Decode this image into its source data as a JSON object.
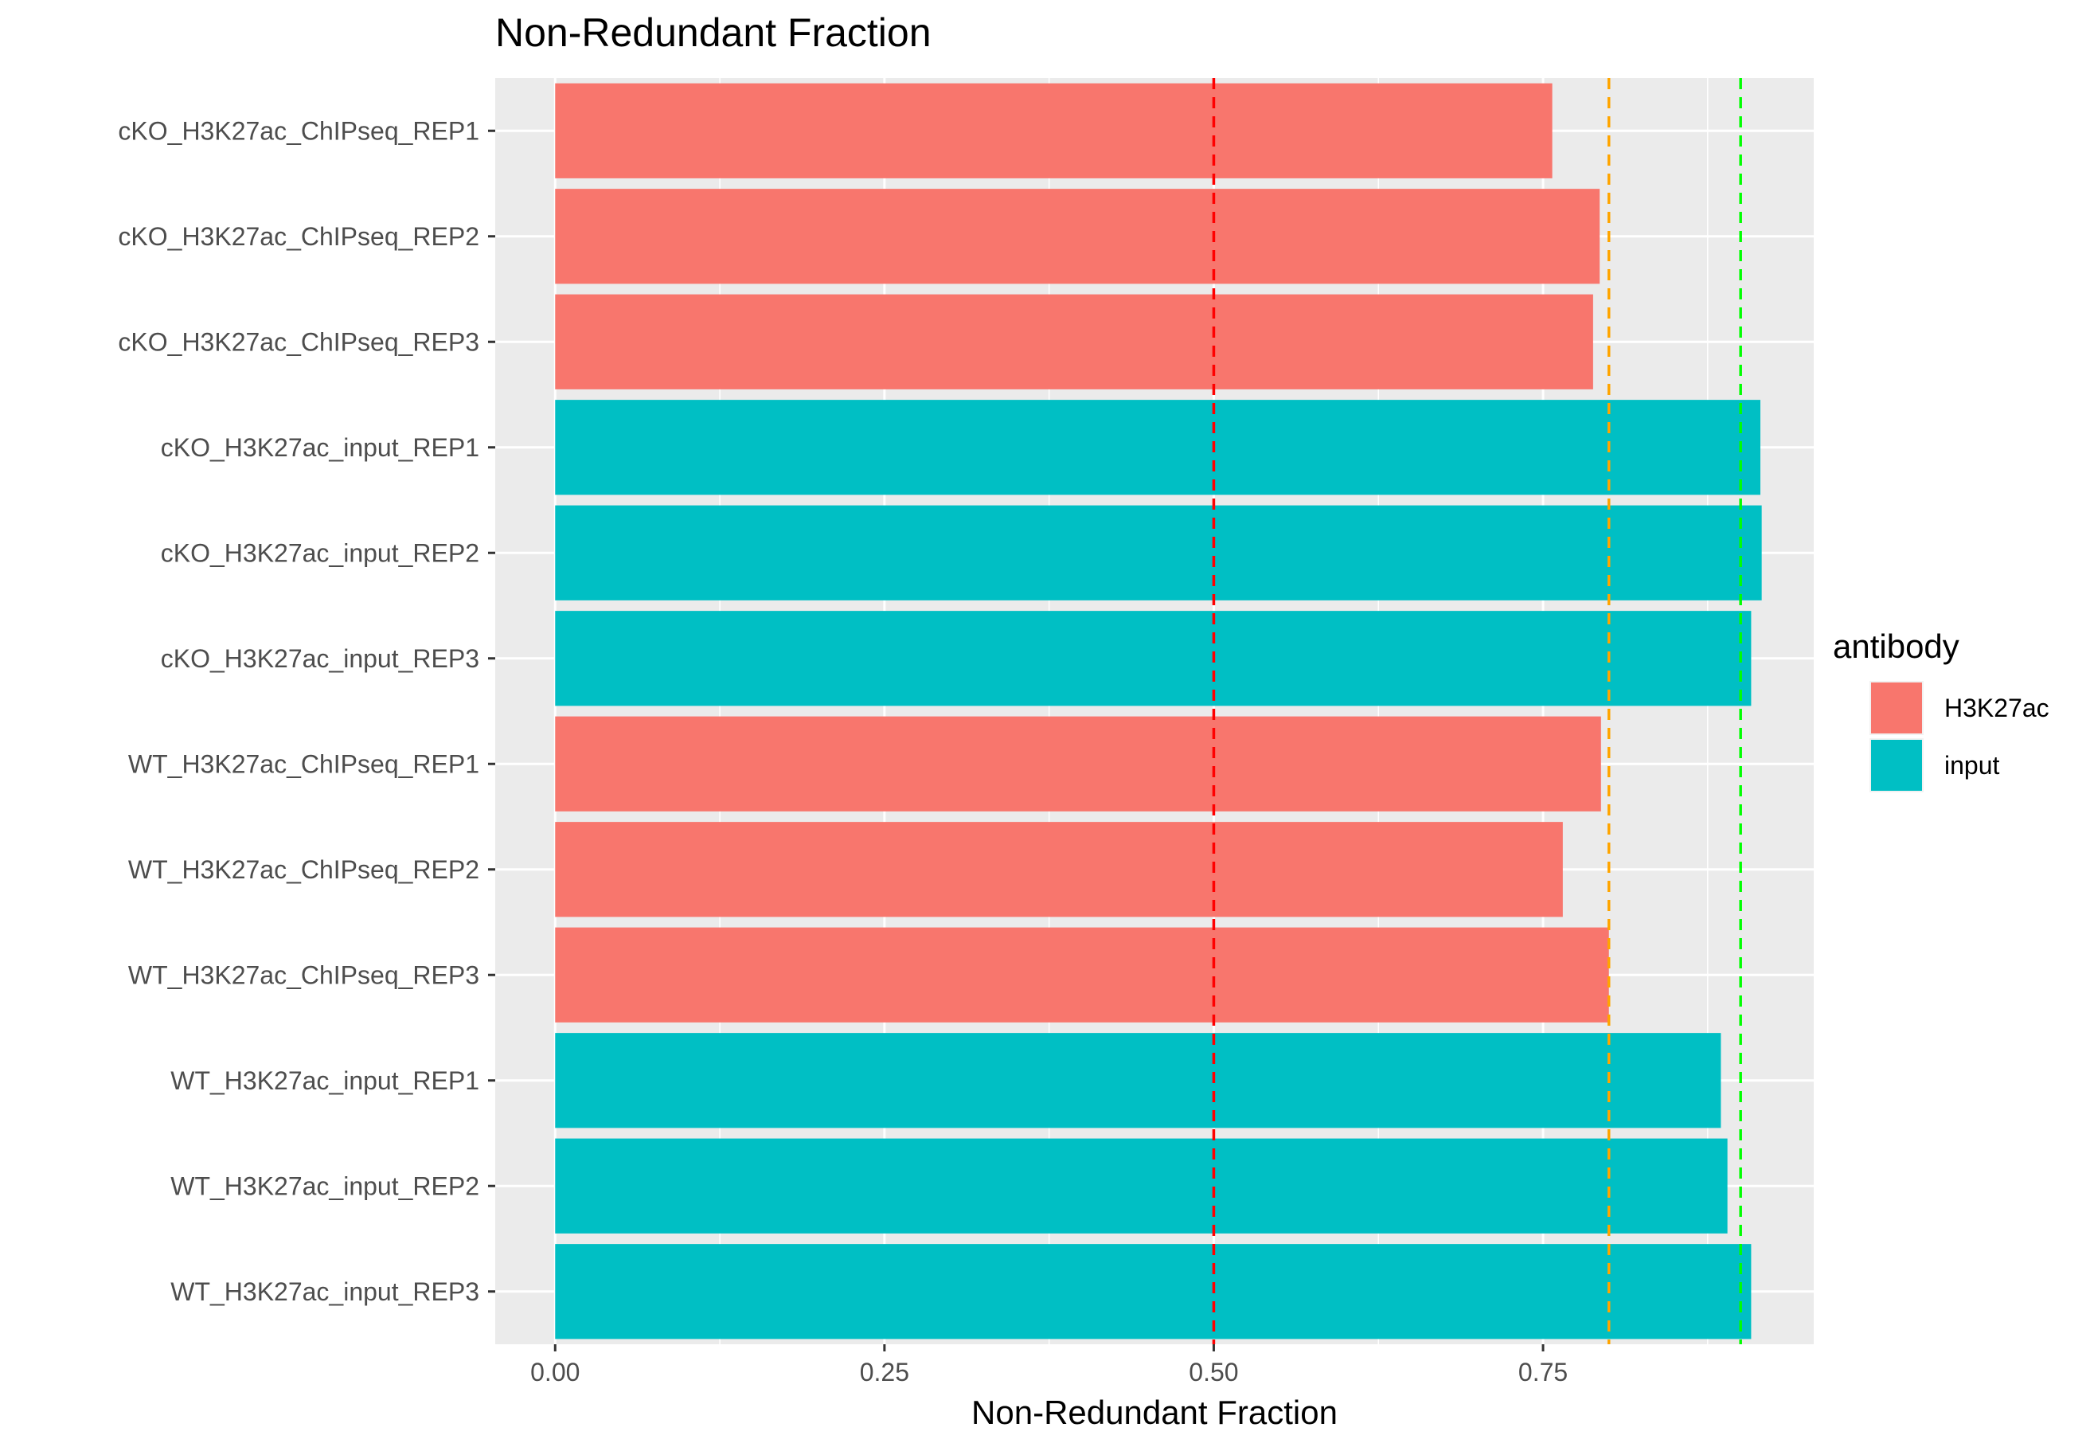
{
  "chart_data": {
    "type": "bar",
    "orientation": "horizontal",
    "title": "Non-Redundant Fraction",
    "xlabel": "Non-Redundant Fraction",
    "ylabel": "",
    "xlim": [
      -0.0455,
      0.9555
    ],
    "x_ticks": [
      0,
      0.25,
      0.5,
      0.75
    ],
    "x_tick_labels": [
      "0.00",
      "0.25",
      "0.50",
      "0.75"
    ],
    "grid": true,
    "legend_position": "right",
    "legend": {
      "title": "antibody",
      "entries": [
        {
          "label": "H3K27ac",
          "color": "#F8766D"
        },
        {
          "label": "input",
          "color": "#00BFC4"
        }
      ]
    },
    "categories": [
      "cKO_H3K27ac_ChIPseq_REP1",
      "cKO_H3K27ac_ChIPseq_REP2",
      "cKO_H3K27ac_ChIPseq_REP3",
      "cKO_H3K27ac_input_REP1",
      "cKO_H3K27ac_input_REP2",
      "cKO_H3K27ac_input_REP3",
      "WT_H3K27ac_ChIPseq_REP1",
      "WT_H3K27ac_ChIPseq_REP2",
      "WT_H3K27ac_ChIPseq_REP3",
      "WT_H3K27ac_input_REP1",
      "WT_H3K27ac_input_REP2",
      "WT_H3K27ac_input_REP3"
    ],
    "values": [
      0.757,
      0.793,
      0.788,
      0.915,
      0.916,
      0.908,
      0.794,
      0.765,
      0.8,
      0.885,
      0.89,
      0.908
    ],
    "antibody": [
      "H3K27ac",
      "H3K27ac",
      "H3K27ac",
      "input",
      "input",
      "input",
      "H3K27ac",
      "H3K27ac",
      "H3K27ac",
      "input",
      "input",
      "input"
    ],
    "reference_lines": [
      {
        "x": 0.5,
        "color": "#FF0000",
        "style": "dashed"
      },
      {
        "x": 0.8,
        "color": "#FFA500",
        "style": "dashed"
      },
      {
        "x": 0.9,
        "color": "#00FF00",
        "style": "dashed"
      }
    ]
  }
}
